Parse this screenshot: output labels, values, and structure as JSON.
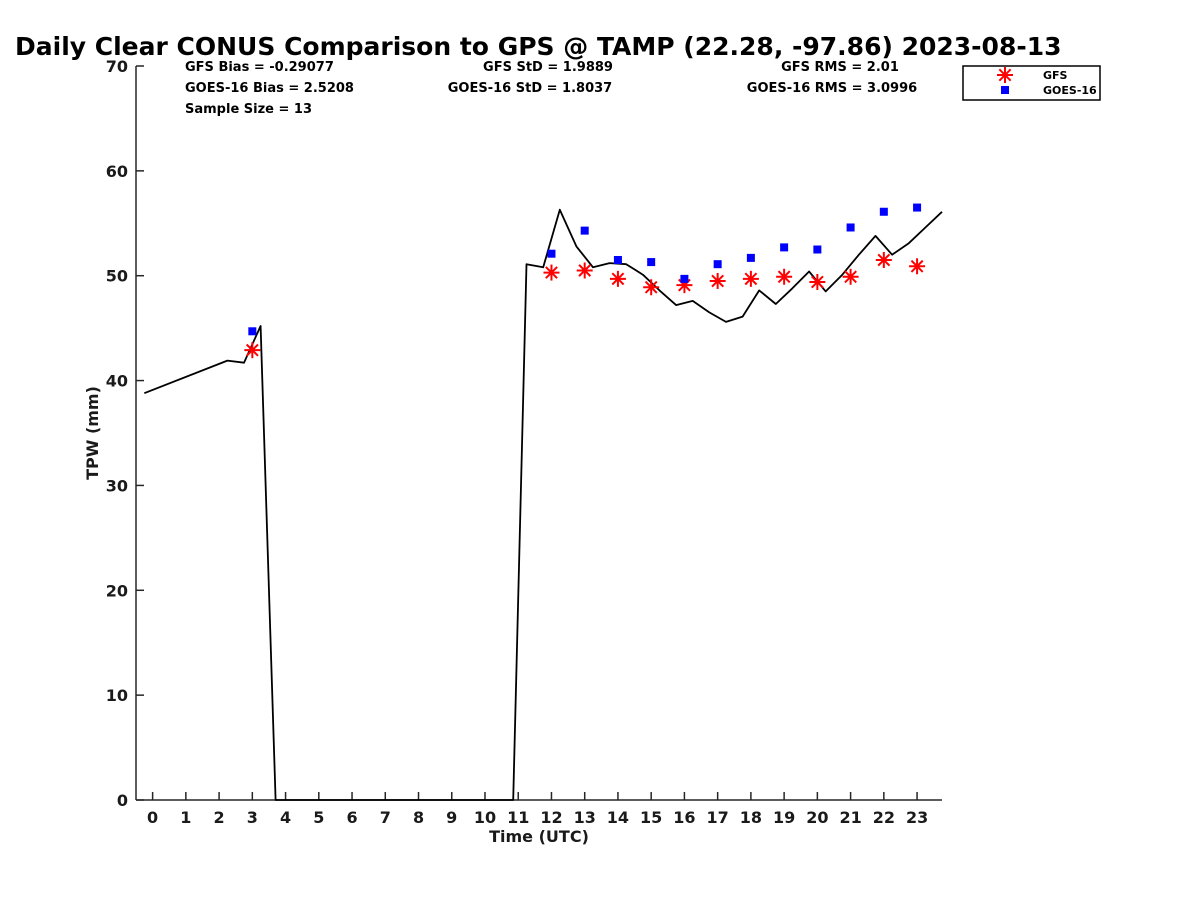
{
  "chart_data": {
    "type": "scatter",
    "title": "Daily Clear CONUS Comparison to GPS @ TAMP (22.28, -97.86) 2023-08-13",
    "xlabel": "Time (UTC)",
    "ylabel": "TPW (mm)",
    "xlim": [
      -0.5,
      23.75
    ],
    "ylim": [
      0,
      70
    ],
    "x_ticks": [
      0,
      1,
      2,
      3,
      4,
      5,
      6,
      7,
      8,
      9,
      10,
      11,
      12,
      13,
      14,
      15,
      16,
      17,
      18,
      19,
      20,
      21,
      22,
      23
    ],
    "y_ticks": [
      0,
      10,
      20,
      30,
      40,
      50,
      60,
      70
    ],
    "grid": false,
    "legend_position": "top-right",
    "stats": {
      "gfs_bias": "GFS Bias = -0.29077",
      "goes_bias": "GOES-16 Bias = 2.5208",
      "sample_size": "Sample Size = 13",
      "gfs_std": "GFS StD = 1.9889",
      "goes_std": "GOES-16 StD = 1.8037",
      "gfs_rms": "GFS RMS = 2.01",
      "goes_rms": "GOES-16 RMS = 3.0996"
    },
    "gps_line": {
      "color": "#000000",
      "x": [
        -0.25,
        2.25,
        2.75,
        3.25,
        3.7,
        10.85,
        11.25,
        11.75,
        12.25,
        12.75,
        13.25,
        13.75,
        14.25,
        14.75,
        15.25,
        15.75,
        16.25,
        16.75,
        17.25,
        17.75,
        18.25,
        18.75,
        19.25,
        19.75,
        20.25,
        20.75,
        21.25,
        21.75,
        22.25,
        22.75,
        23.25,
        23.75
      ],
      "y": [
        38.8,
        41.9,
        41.7,
        45.2,
        0,
        0,
        51.1,
        50.8,
        56.3,
        52.8,
        50.8,
        51.2,
        51.1,
        50.1,
        48.6,
        47.2,
        47.6,
        46.5,
        45.6,
        46.1,
        48.6,
        47.3,
        48.8,
        50.4,
        48.5,
        50.1,
        52.0,
        53.8,
        52.0,
        53.1,
        54.6,
        56.1
      ]
    },
    "series": [
      {
        "name": "GFS",
        "marker": "asterisk",
        "color": "#ff0000",
        "x": [
          3,
          12,
          13,
          14,
          15,
          16,
          17,
          18,
          19,
          20,
          21,
          22,
          23
        ],
        "y": [
          42.9,
          50.3,
          50.5,
          49.7,
          48.9,
          49.1,
          49.5,
          49.7,
          49.9,
          49.4,
          49.9,
          51.5,
          50.9
        ]
      },
      {
        "name": "GOES-16",
        "marker": "square",
        "color": "#0000ff",
        "x": [
          3,
          12,
          13,
          14,
          15,
          16,
          17,
          18,
          19,
          20,
          21,
          22,
          23
        ],
        "y": [
          44.7,
          52.1,
          54.3,
          51.5,
          51.3,
          49.7,
          51.1,
          51.7,
          52.7,
          52.5,
          54.6,
          56.1,
          56.5
        ]
      }
    ]
  }
}
